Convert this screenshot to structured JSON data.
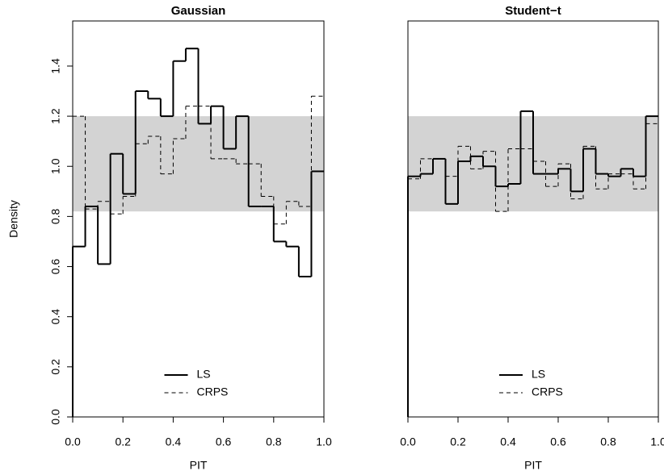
{
  "chart_data": [
    {
      "type": "histogram",
      "title": "Gaussian",
      "x_label": "PIT",
      "y_label": "Density",
      "bins": [
        0,
        0.05,
        0.1,
        0.15,
        0.2,
        0.25,
        0.3,
        0.35,
        0.4,
        0.45,
        0.5,
        0.55,
        0.6,
        0.65,
        0.7,
        0.75,
        0.8,
        0.85,
        0.9,
        0.95,
        1
      ],
      "series": [
        {
          "name": "LS",
          "color": "#000000",
          "style": "solid",
          "values": [
            0.68,
            0.84,
            0.61,
            1.05,
            0.89,
            1.3,
            1.27,
            1.2,
            1.42,
            1.47,
            1.17,
            1.24,
            1.07,
            1.2,
            0.84,
            0.84,
            0.7,
            0.68,
            0.56,
            0.98
          ]
        },
        {
          "name": "CRPS",
          "color": "#000000",
          "style": "dashed",
          "values": [
            1.2,
            0.83,
            0.86,
            0.81,
            0.88,
            1.09,
            1.12,
            0.97,
            1.11,
            1.24,
            1.24,
            1.03,
            1.03,
            1.01,
            1.01,
            0.88,
            0.77,
            0.86,
            0.84,
            1.28
          ]
        }
      ],
      "band": [
        0.82,
        1.2
      ],
      "band_color": "#d3d3d3",
      "xlim": [
        0,
        1
      ],
      "ylim": [
        0,
        1.58
      ],
      "xticks": [
        {
          "value": 0,
          "label": "0.0"
        },
        0.2,
        0.4,
        0.6,
        0.8,
        {
          "value": 1,
          "label": "1.0"
        }
      ],
      "yticks": [
        {
          "value": 0,
          "label": "0.0"
        },
        0.2,
        0.4,
        0.6,
        0.8,
        {
          "value": 1,
          "label": "1.0"
        },
        1.2,
        1.4
      ],
      "legend": "bottom"
    },
    {
      "type": "histogram",
      "title": "Student−t",
      "x_label": "PIT",
      "bins": [
        0,
        0.05,
        0.1,
        0.15,
        0.2,
        0.25,
        0.3,
        0.35,
        0.4,
        0.45,
        0.5,
        0.55,
        0.6,
        0.65,
        0.7,
        0.75,
        0.8,
        0.85,
        0.9,
        0.95,
        1
      ],
      "series": [
        {
          "name": "LS",
          "color": "#000000",
          "style": "solid",
          "values": [
            0.96,
            0.97,
            1.03,
            0.85,
            1.02,
            1.04,
            1.0,
            0.92,
            0.93,
            1.22,
            0.97,
            0.97,
            0.99,
            0.9,
            1.07,
            0.97,
            0.96,
            0.99,
            0.96,
            1.2
          ]
        },
        {
          "name": "CRPS",
          "color": "#000000",
          "style": "dashed",
          "values": [
            0.95,
            1.03,
            1.03,
            0.96,
            1.08,
            0.99,
            1.06,
            0.82,
            1.07,
            1.07,
            1.02,
            0.92,
            1.01,
            0.87,
            1.08,
            0.91,
            0.97,
            0.97,
            0.91,
            1.17
          ]
        }
      ],
      "band": [
        0.82,
        1.2
      ],
      "band_color": "#d3d3d3",
      "xlim": [
        0,
        1
      ],
      "ylim": [
        0,
        1.58
      ],
      "xticks": [
        {
          "value": 0,
          "label": "0.0"
        },
        0.2,
        0.4,
        0.6,
        0.8,
        {
          "value": 1,
          "label": "1.0"
        }
      ],
      "legend": "bottom"
    }
  ]
}
